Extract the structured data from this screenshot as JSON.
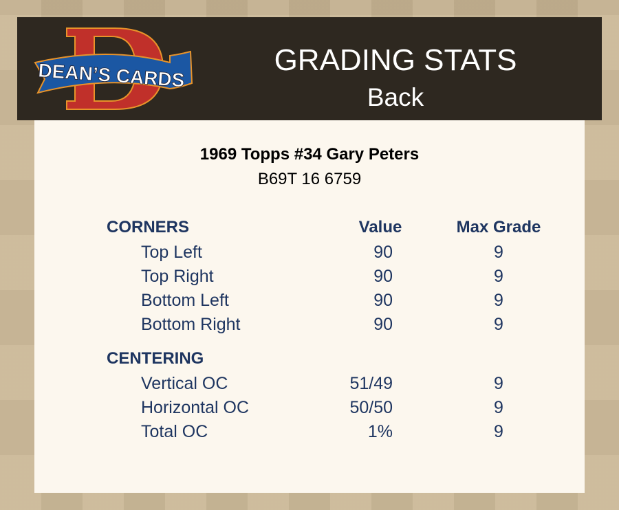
{
  "header": {
    "logo_text": "DEAN'S CARDS",
    "title": "GRADING STATS",
    "subtitle": "Back"
  },
  "card": {
    "title": "1969 Topps #34 Gary Peters",
    "code": "B69T 16 6759"
  },
  "columns": {
    "value": "Value",
    "max_grade": "Max Grade"
  },
  "sections": [
    {
      "name": "CORNERS",
      "rows": [
        {
          "label": "Top Left",
          "value": "90",
          "max": "9"
        },
        {
          "label": "Top Right",
          "value": "90",
          "max": "9"
        },
        {
          "label": "Bottom Left",
          "value": "90",
          "max": "9"
        },
        {
          "label": "Bottom Right",
          "value": "90",
          "max": "9"
        }
      ]
    },
    {
      "name": "CENTERING",
      "rows": [
        {
          "label": "Vertical OC",
          "value": "51/49",
          "max": "9"
        },
        {
          "label": "Horizontal OC",
          "value": "50/50",
          "max": "9"
        },
        {
          "label": "Total OC",
          "value": "1%",
          "max": "9"
        }
      ]
    }
  ],
  "colors": {
    "header_bg": "#2e2820",
    "card_bg": "#fcf7ee",
    "text": "#1e3560",
    "page_bg": "#c9b694"
  }
}
